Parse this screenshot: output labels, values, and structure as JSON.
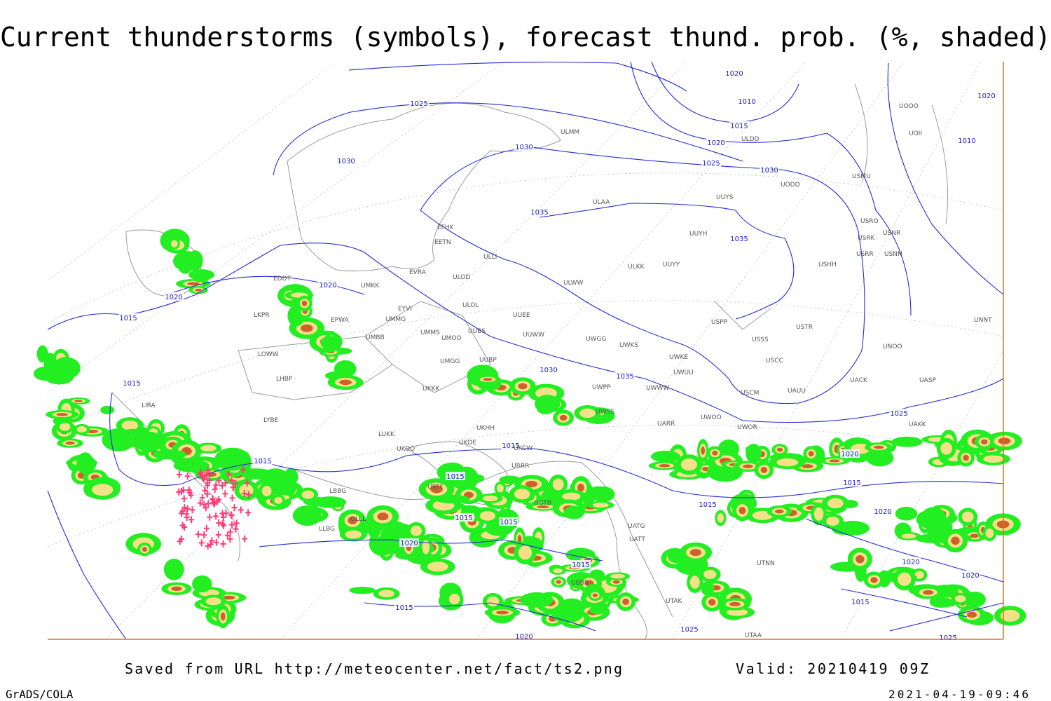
{
  "header": {
    "title": "Current thunderstorms (symbols), forecast thund. prob. (%, shaded)"
  },
  "map": {
    "isobar_labels": [
      1020,
      1025,
      1030,
      1030,
      1035,
      1035,
      1010,
      1015,
      1020,
      1025,
      1030,
      1020,
      1010,
      1025,
      1020,
      1020,
      1020,
      1015,
      1015,
      1015,
      1015,
      1015,
      1015,
      1015,
      1015,
      1015,
      1020,
      1015,
      1015,
      1020,
      1015,
      1020,
      1020,
      1025,
      1020,
      1030,
      1035,
      1025
    ],
    "stations": [
      "EDDT",
      "EPWA",
      "LKPR",
      "LOWW",
      "LHBP",
      "LIRA",
      "LYBE",
      "LUKK",
      "UKOO",
      "UKKK",
      "UMMS",
      "UMOO",
      "UMGG",
      "UMBB",
      "UMMG",
      "EYVI",
      "UMKK",
      "EVRA",
      "ULOD",
      "EETN",
      "EFHK",
      "ULLI",
      "ULOL",
      "UUEE",
      "UUBS",
      "UUWW",
      "UUBP",
      "UKHH",
      "UKDE",
      "UKCW",
      "URRR",
      "UKFF",
      "UGTB",
      "UBBB",
      "UTAK",
      "UTAA",
      "UTNN",
      "UATG",
      "UATT",
      "UARR",
      "UWOO",
      "UWOR",
      "UWSS",
      "UWPP",
      "UWWW",
      "UWKE",
      "UWUU",
      "USCM",
      "UAUU",
      "USCC",
      "USSS",
      "USPP",
      "USTR",
      "UNOO",
      "UACK",
      "UASP",
      "UAKK",
      "UNNT",
      "USHH",
      "USRR",
      "USNN",
      "USRK",
      "USRO",
      "USNR",
      "USMU",
      "UUYS",
      "UUYH",
      "UUYY",
      "ULKK",
      "ULWW",
      "ULAA",
      "ULMM",
      "ULDD",
      "UODD",
      "UOOO",
      "UOII",
      "UWGG",
      "UWKS",
      "LBBG",
      "OLLL",
      "LLBG"
    ]
  },
  "footer": {
    "saved": "Saved from URL http://meteocenter.net/fact/ts2.png",
    "valid": "Valid: 20210419 09Z",
    "software": "GrADS/COLA",
    "timestamp": "2021-04-19-09:46"
  }
}
